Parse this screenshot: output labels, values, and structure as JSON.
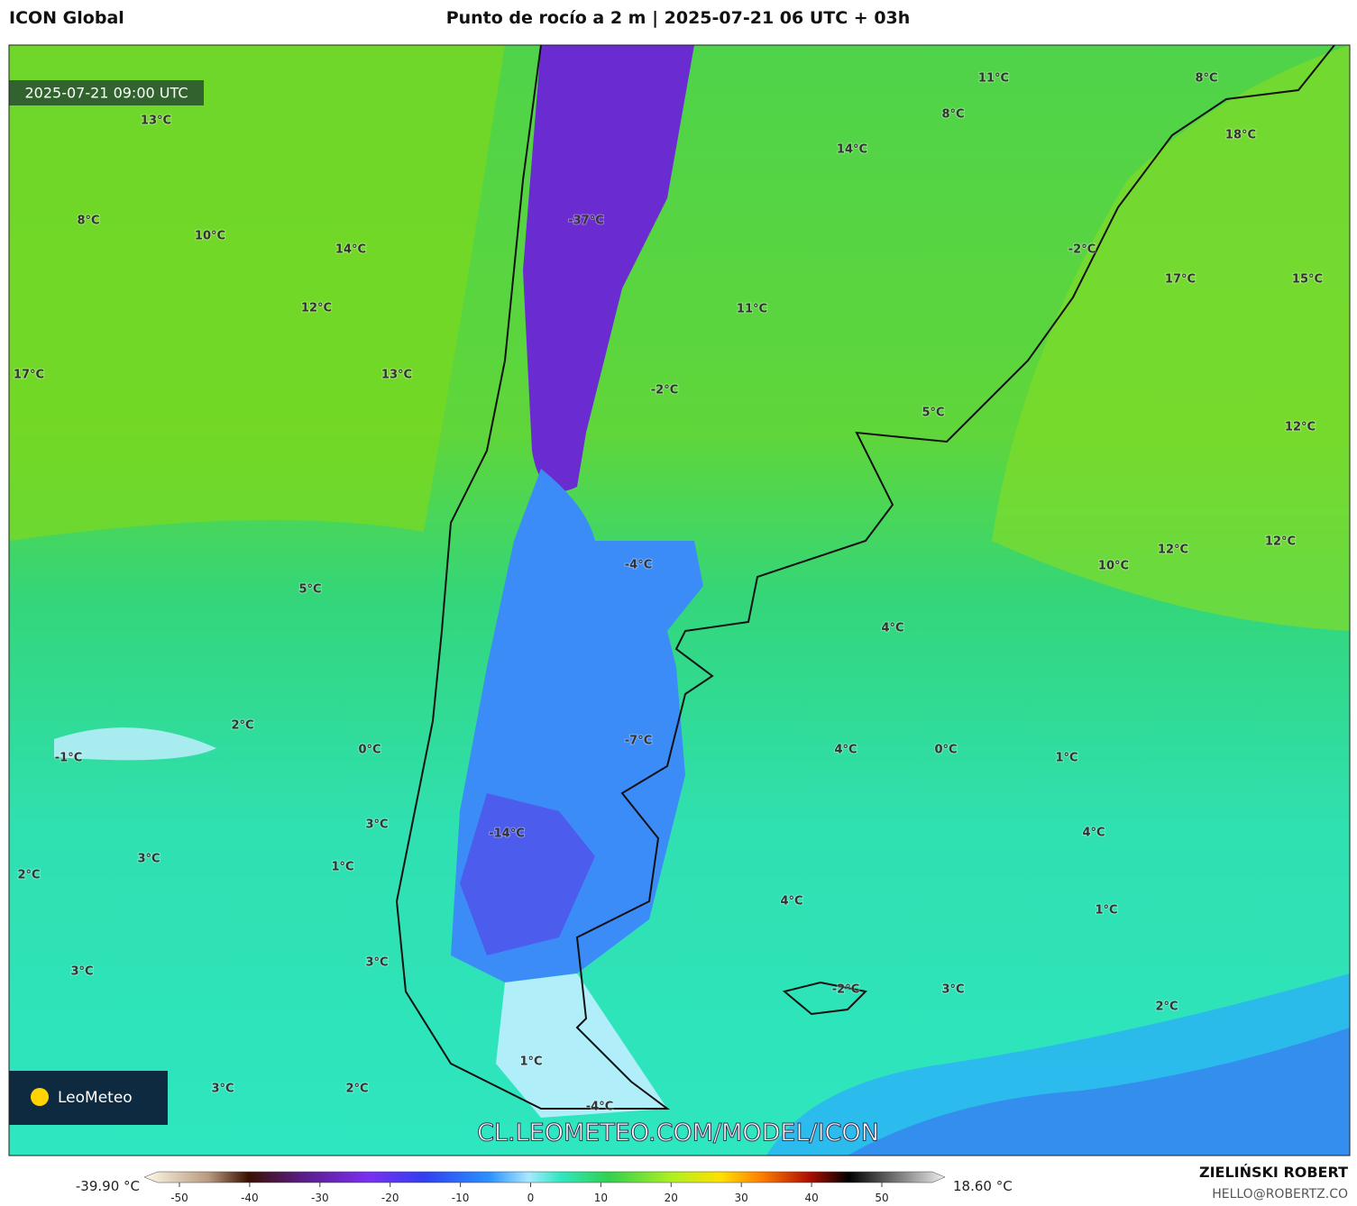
{
  "header": {
    "title": "ICON Global",
    "subtitle": "Punto de rocío a 2 m | 2025-07-21 06 UTC + 03h"
  },
  "map": {
    "valid_time": "2025-07-21 09:00 UTC",
    "watermark": "CL.LEOMETEO.COM/MODEL/ICON",
    "logo": "LeoMeteo",
    "labels": [
      "13°C",
      "8°C",
      "10°C",
      "14°C",
      "12°C",
      "17°C",
      "13°C",
      "-37°C",
      "11°C",
      "8°C",
      "8°C",
      "18°C",
      "14°C",
      "-2°C",
      "17°C",
      "15°C",
      "11°C",
      "-2°C",
      "5°C",
      "12°C",
      "12°C",
      "12°C",
      "10°C",
      "-4°C",
      "5°C",
      "4°C",
      "2°C",
      "-1°C",
      "0°C",
      "-7°C",
      "4°C",
      "0°C",
      "1°C",
      "3°C",
      "-14°C",
      "4°C",
      "3°C",
      "2°C",
      "1°C",
      "4°C",
      "1°C",
      "3°C",
      "3°C",
      "-2°C",
      "3°C",
      "2°C",
      "1°C",
      "3°C",
      "2°C",
      "-4°C"
    ]
  },
  "colorbar": {
    "min_label": "-39.90 °C",
    "max_label": "18.60 °C",
    "ticks": [
      -50,
      -40,
      -30,
      -20,
      -10,
      0,
      10,
      20,
      30,
      40,
      50
    ]
  },
  "footer": {
    "author": "ZIELIŃSKI ROBERT",
    "email": "HELLO@ROBERTZ.CO"
  }
}
